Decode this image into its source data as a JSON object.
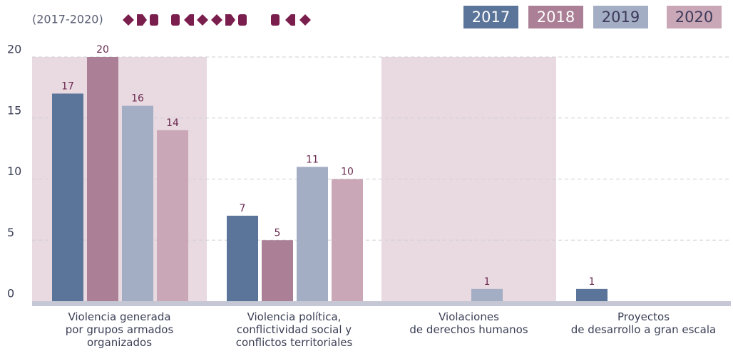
{
  "chart_data": {
    "type": "bar",
    "subtitle": "(2017-2020)",
    "categories": [
      "Violencia generada\npor grupos armados\norganizados",
      "Violencia política,\nconflictividad social y\nconflictos territoriales",
      "Violaciones\nde derechos humanos",
      "Proyectos\nde desarrollo a gran escala"
    ],
    "series": [
      {
        "name": "2017",
        "color": "#5b7499",
        "values": [
          17,
          7,
          null,
          1
        ]
      },
      {
        "name": "2018",
        "color": "#ab7f95",
        "values": [
          20,
          5,
          null,
          null
        ]
      },
      {
        "name": "2019",
        "color": "#a3adc3",
        "values": [
          16,
          11,
          1,
          null
        ]
      },
      {
        "name": "2020",
        "color": "#c9a7b7",
        "values": [
          14,
          10,
          null,
          null
        ]
      }
    ],
    "ylim": [
      0,
      20
    ],
    "yticks": [
      0,
      5,
      10,
      15,
      20
    ],
    "grid": true
  }
}
